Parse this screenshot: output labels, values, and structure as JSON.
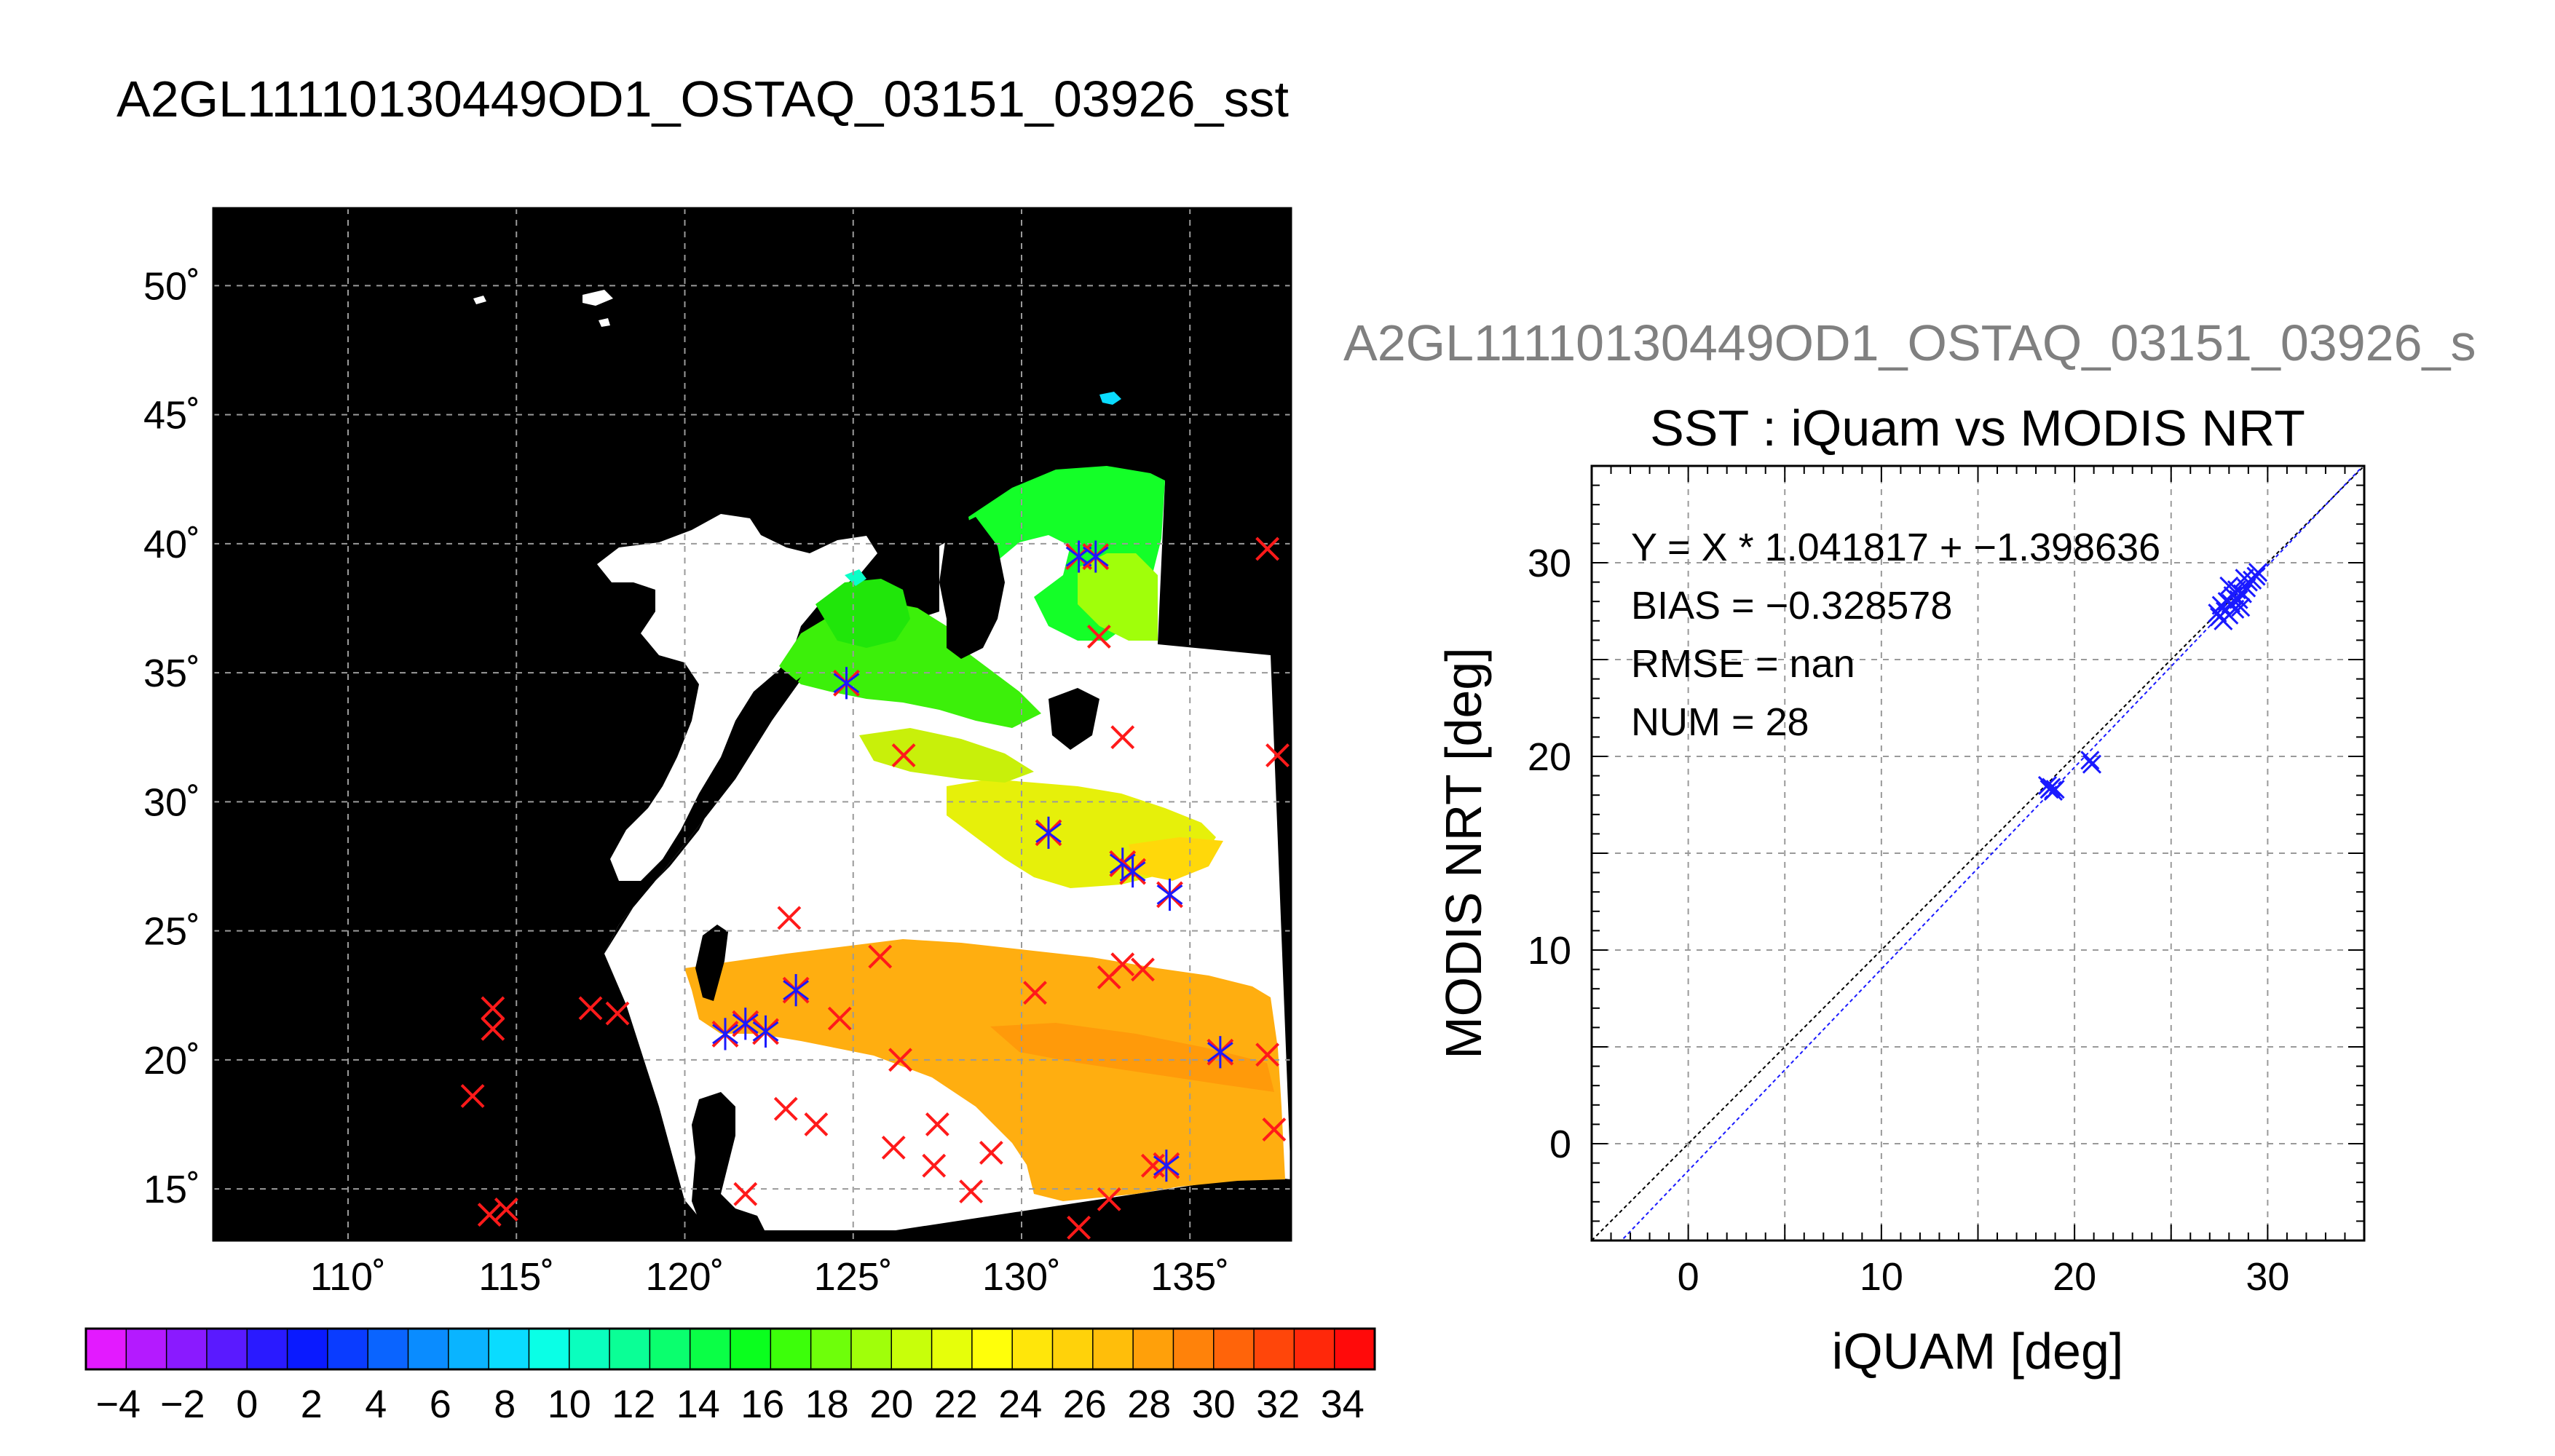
{
  "main_title": "A2GL11110130449OD1_OSTAQ_03151_03926_sst",
  "scatter_header": "A2GL11110130449OD1_OSTAQ_03151_03926_s",
  "chart_data": [
    {
      "type": "heatmap",
      "description": "MODIS sea surface temperature map with iQuam match-up locations",
      "map_title": "",
      "lon_range": [
        106,
        138
      ],
      "lat_range": [
        13,
        53
      ],
      "xticks": [
        110,
        115,
        120,
        125,
        130,
        135
      ],
      "yticks": [
        15,
        20,
        25,
        30,
        35,
        40,
        45,
        50
      ],
      "xtick_labels": [
        "110˚",
        "115˚",
        "120˚",
        "125˚",
        "130˚",
        "135˚"
      ],
      "ytick_labels": [
        "15˚",
        "20˚",
        "25˚",
        "30˚",
        "35˚",
        "40˚",
        "45˚",
        "50˚"
      ],
      "grid": true,
      "colorbar": {
        "min": -5,
        "max": 35,
        "labels": [
          "−4",
          "−2",
          "0",
          "2",
          "4",
          "6",
          "8",
          "10",
          "12",
          "14",
          "16",
          "18",
          "20",
          "22",
          "24",
          "26",
          "28",
          "30",
          "32",
          "34"
        ],
        "label_values": [
          -4,
          -2,
          0,
          2,
          4,
          6,
          8,
          10,
          12,
          14,
          16,
          18,
          20,
          22,
          24,
          26,
          28,
          30,
          32,
          34
        ],
        "colors": [
          "#e31aff",
          "#b41aff",
          "#8a1aff",
          "#5a1aff",
          "#2a1aff",
          "#0a1aff",
          "#0a3cff",
          "#0a64ff",
          "#0a8cff",
          "#0ab4ff",
          "#0adcff",
          "#0affe6",
          "#0affbe",
          "#0aff96",
          "#0aff6e",
          "#0aff46",
          "#0aff1e",
          "#3cff0a",
          "#6eff0a",
          "#a0ff0a",
          "#c8ff0a",
          "#e6ff0a",
          "#ffff0a",
          "#ffe60a",
          "#ffd20a",
          "#ffbe0a",
          "#ffa00a",
          "#ff820a",
          "#ff640a",
          "#ff460a",
          "#ff280a",
          "#ff0a0a"
        ]
      },
      "matchup_points": {
        "red_only": [
          [
            113.7,
            18.6
          ],
          [
            114.2,
            14.0
          ],
          [
            114.7,
            14.2
          ],
          [
            114.3,
            21.2
          ],
          [
            114.3,
            22.0
          ],
          [
            117.2,
            22.0
          ],
          [
            118.0,
            21.8
          ],
          [
            123.1,
            25.5
          ],
          [
            123.0,
            18.1
          ],
          [
            123.9,
            17.5
          ],
          [
            124.6,
            21.6
          ],
          [
            125.8,
            24.0
          ],
          [
            126.2,
            16.6
          ],
          [
            126.4,
            20.0
          ],
          [
            127.5,
            17.5
          ],
          [
            127.4,
            15.9
          ],
          [
            128.5,
            14.9
          ],
          [
            129.1,
            16.4
          ],
          [
            121.8,
            14.8
          ],
          [
            130.4,
            22.6
          ],
          [
            131.7,
            13.5
          ],
          [
            132.6,
            23.2
          ],
          [
            133.0,
            23.7
          ],
          [
            133.6,
            23.5
          ],
          [
            132.6,
            14.6
          ],
          [
            133.9,
            15.9
          ],
          [
            132.3,
            36.4
          ],
          [
            133.0,
            32.5
          ],
          [
            137.3,
            39.8
          ],
          [
            137.6,
            31.8
          ],
          [
            137.3,
            20.2
          ],
          [
            137.5,
            17.3
          ],
          [
            126.5,
            31.8
          ]
        ],
        "red_and_blue": [
          [
            121.2,
            21.0
          ],
          [
            121.8,
            21.4
          ],
          [
            122.4,
            21.1
          ],
          [
            123.3,
            22.7
          ],
          [
            124.8,
            34.6
          ],
          [
            130.8,
            28.8
          ],
          [
            131.7,
            39.5
          ],
          [
            132.2,
            39.5
          ],
          [
            133.0,
            27.6
          ],
          [
            133.3,
            27.3
          ],
          [
            134.4,
            26.4
          ],
          [
            134.3,
            15.9
          ],
          [
            135.9,
            20.3
          ]
        ]
      }
    },
    {
      "type": "scatter",
      "title": "SST : iQuam vs MODIS NRT",
      "xlabel": "iQUAM [deg]",
      "ylabel": "MODIS NRT [deg]",
      "xlim": [
        -5,
        35
      ],
      "ylim": [
        -5,
        35
      ],
      "xticks": [
        0,
        10,
        20,
        30
      ],
      "yticks": [
        0,
        10,
        20,
        30
      ],
      "grid": true,
      "annotations": [
        "Y = X * 1.041817 + −1.398636",
        "BIAS = −0.328578",
        "RMSE = nan",
        "NUM = 28"
      ],
      "fit": {
        "slope": 1.041817,
        "intercept": -1.398636
      },
      "points": [
        [
          18.7,
          18.3
        ],
        [
          18.8,
          18.4
        ],
        [
          18.6,
          18.5
        ],
        [
          18.9,
          18.2
        ],
        [
          19.0,
          18.3
        ],
        [
          20.8,
          19.8
        ],
        [
          20.9,
          19.6
        ],
        [
          27.5,
          27.2
        ],
        [
          27.7,
          27.0
        ],
        [
          27.8,
          27.5
        ],
        [
          28.0,
          27.3
        ],
        [
          27.6,
          27.8
        ],
        [
          28.1,
          27.9
        ],
        [
          28.2,
          28.3
        ],
        [
          27.9,
          28.0
        ],
        [
          28.3,
          27.6
        ],
        [
          28.5,
          28.1
        ],
        [
          28.4,
          28.6
        ],
        [
          28.0,
          28.8
        ],
        [
          28.7,
          28.4
        ],
        [
          28.9,
          28.7
        ],
        [
          29.0,
          29.0
        ],
        [
          29.2,
          29.1
        ],
        [
          29.4,
          29.3
        ],
        [
          29.5,
          29.5
        ],
        [
          28.6,
          27.7
        ],
        [
          27.4,
          27.4
        ],
        [
          28.8,
          29.2
        ]
      ]
    }
  ]
}
